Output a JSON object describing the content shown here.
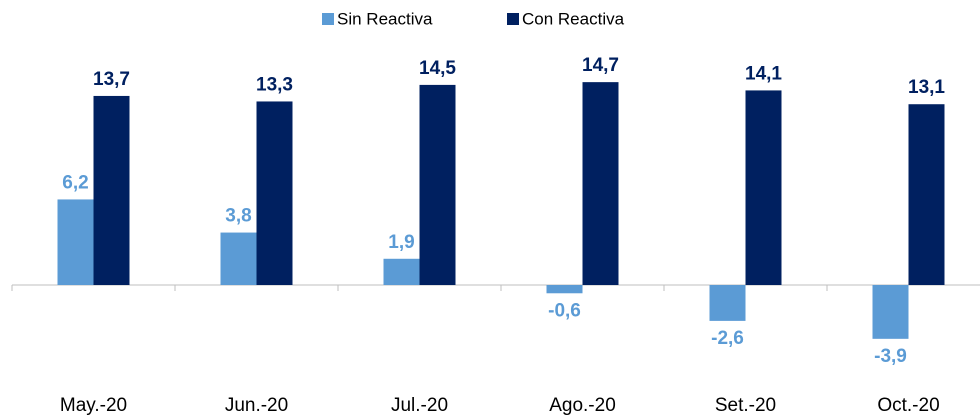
{
  "chart_data": {
    "type": "bar",
    "categories": [
      "May.-20",
      "Jun.-20",
      "Jul.-20",
      "Ago.-20",
      "Set.-20",
      "Oct.-20"
    ],
    "series": [
      {
        "name": "Sin Reactiva",
        "color": "#5b9bd5",
        "values": [
          6.2,
          3.8,
          1.9,
          -0.6,
          -2.6,
          -3.9
        ],
        "value_labels": [
          "6,2",
          "3,8",
          "1,9",
          "-0,6",
          "-2,6",
          "-3,9"
        ]
      },
      {
        "name": "Con Reactiva",
        "color": "#002060",
        "values": [
          13.7,
          13.3,
          14.5,
          14.7,
          14.1,
          13.1
        ],
        "value_labels": [
          "13,7",
          "13,3",
          "14,5",
          "14,7",
          "14,1",
          "13,1"
        ]
      }
    ],
    "legend": "top"
  }
}
